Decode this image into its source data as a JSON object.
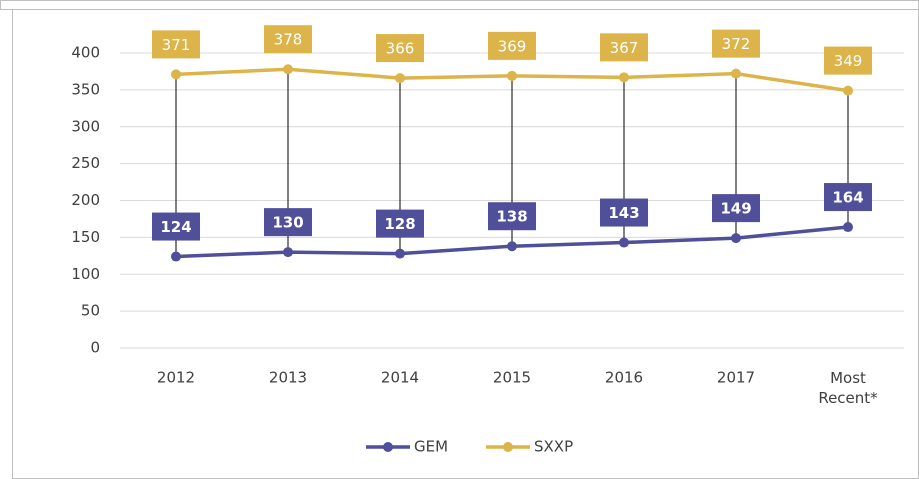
{
  "chart_data": {
    "type": "line",
    "categories": [
      "2012",
      "2013",
      "2014",
      "2015",
      "2016",
      "2017",
      "Most Recent*"
    ],
    "series": [
      {
        "name": "GEM",
        "color": "#4f4f9a",
        "values": [
          124,
          130,
          128,
          138,
          143,
          149,
          164
        ]
      },
      {
        "name": "SXXP",
        "color": "#dcb44a",
        "values": [
          371,
          378,
          366,
          369,
          367,
          372,
          349
        ]
      }
    ],
    "ylim": [
      0,
      400
    ],
    "yticks": [
      0,
      50,
      100,
      150,
      200,
      250,
      300,
      350,
      400
    ],
    "grid": true,
    "drop_lines": true,
    "legend": "bottom"
  }
}
